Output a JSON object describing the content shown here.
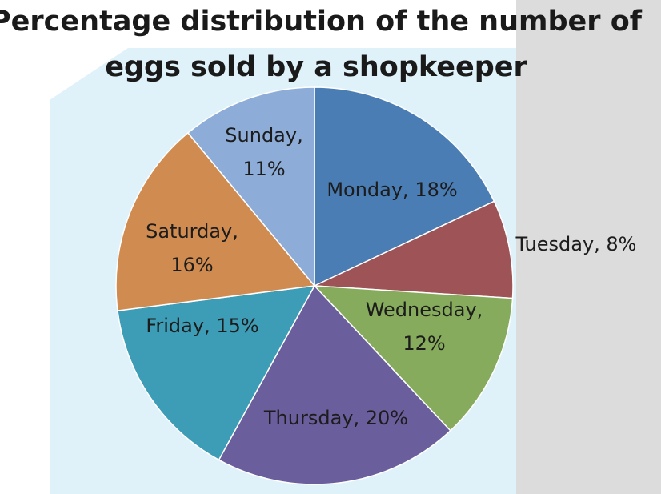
{
  "chart_data": {
    "type": "pie",
    "title": "Percentage distribution of the number of eggs sold by a shopkeeper",
    "values": [
      18,
      8,
      12,
      20,
      15,
      16,
      11
    ],
    "value_labels": [
      "Monday, 18%",
      "Tuesday, 8%",
      "Wednesday, 12%",
      "Thursday, 20%",
      "Friday, 15%",
      "Saturday, 16%",
      "Sunday, 11%"
    ],
    "colors": [
      "#4a7db4",
      "#9e5457",
      "#86ab5c",
      "#6a5f9c",
      "#3e9db6",
      "#d08c50",
      "#8dadd8"
    ]
  }
}
